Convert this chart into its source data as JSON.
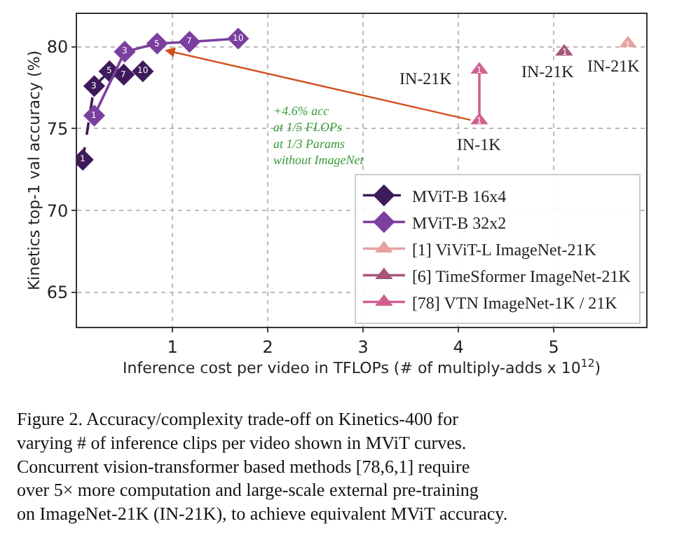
{
  "chart_data": {
    "type": "line",
    "xlabel": "Inference cost per video in TFLOPs (# of multiply-adds x 10$^{12}$)",
    "ylabel": "Kinetics top-1 val accuracy (%)",
    "xlim": [
      0,
      5.97
    ],
    "ylim": [
      62.9,
      82
    ],
    "xticks": [
      1,
      2,
      3,
      4,
      5
    ],
    "yticks": [
      65,
      70,
      75,
      80
    ],
    "grid": true,
    "legend": "bottom right",
    "series": [
      {
        "name": "MViT-B 16x4",
        "color": "#3d1a5b",
        "marker": "diamond",
        "line_style": "dashed",
        "x": [
          0.06,
          0.18,
          0.34,
          0.49,
          0.69
        ],
        "values": [
          73.1,
          77.6,
          78.5,
          78.3,
          78.5
        ]
      },
      {
        "name": "MViT-B 32x2",
        "color": "#7b3fa0",
        "marker": "diamond",
        "line_style": "solid",
        "x": [
          0.18,
          0.5,
          0.84,
          1.18,
          1.69
        ],
        "values": [
          75.8,
          79.7,
          80.2,
          80.3,
          80.5
        ]
      },
      {
        "name": "[1] ViViT-L ImageNet-21K",
        "color": "#e8a0a0",
        "marker": "triangle",
        "line_style": "solid",
        "x": [
          5.78
        ],
        "values": [
          80.2
        ]
      },
      {
        "name": "[6] TimeSformer ImageNet-21K",
        "color": "#a8557a",
        "marker": "triangle",
        "line_style": "solid",
        "x": [
          5.11
        ],
        "values": [
          79.7
        ]
      },
      {
        "name": "[78] VTN ImageNet-1K / 21K",
        "color": "#d0608f",
        "marker": "triangle",
        "line_style": "solid",
        "x": [
          4.22,
          4.22
        ],
        "values": [
          78.6,
          75.5
        ]
      }
    ],
    "annotations": [
      {
        "text": "IN-21K",
        "x": 4.22,
        "y": 78.6
      },
      {
        "text": "IN-1K",
        "x": 4.22,
        "y": 75.5
      },
      {
        "text": "IN-21K",
        "x": 5.11,
        "y": 79.7
      },
      {
        "text": "IN-21K",
        "x": 5.78,
        "y": 80.2
      },
      {
        "text": "1",
        "x": 0.06,
        "y": 73.1
      },
      {
        "text": "3",
        "x": 0.18,
        "y": 77.6
      },
      {
        "text": "5",
        "x": 0.34,
        "y": 78.5
      },
      {
        "text": "7",
        "x": 0.49,
        "y": 78.3
      },
      {
        "text": "10",
        "x": 0.69,
        "y": 78.5
      },
      {
        "text": "1",
        "x": 0.18,
        "y": 75.8
      },
      {
        "text": "3",
        "x": 0.5,
        "y": 79.7
      },
      {
        "text": "5",
        "x": 0.84,
        "y": 80.2
      },
      {
        "text": "7",
        "x": 1.18,
        "y": 80.3
      },
      {
        "text": "10",
        "x": 1.69,
        "y": 80.5
      },
      {
        "text": "1",
        "x": 5.78,
        "y": 80.2
      },
      {
        "text": "1",
        "x": 5.11,
        "y": 79.7
      },
      {
        "text": "1",
        "x": 4.22,
        "y": 78.6
      },
      {
        "text": "1",
        "x": 4.22,
        "y": 75.5
      },
      "+4.6% acc\nat 1/5 FLOPs\nat 1/3 Params\nwithout ImageNet",
      "Figure 2. Accuracy/complexity trade-off on Kinetics-400 for varying # of inference clips per video shown in MViT curves. Concurrent vision-transformer based methods [78,6,1] require over 5× more computation and large-scale external pre-training on ImageNet-21K (IN-21K), to achieve equivalent MViT accuracy."
    ]
  }
}
